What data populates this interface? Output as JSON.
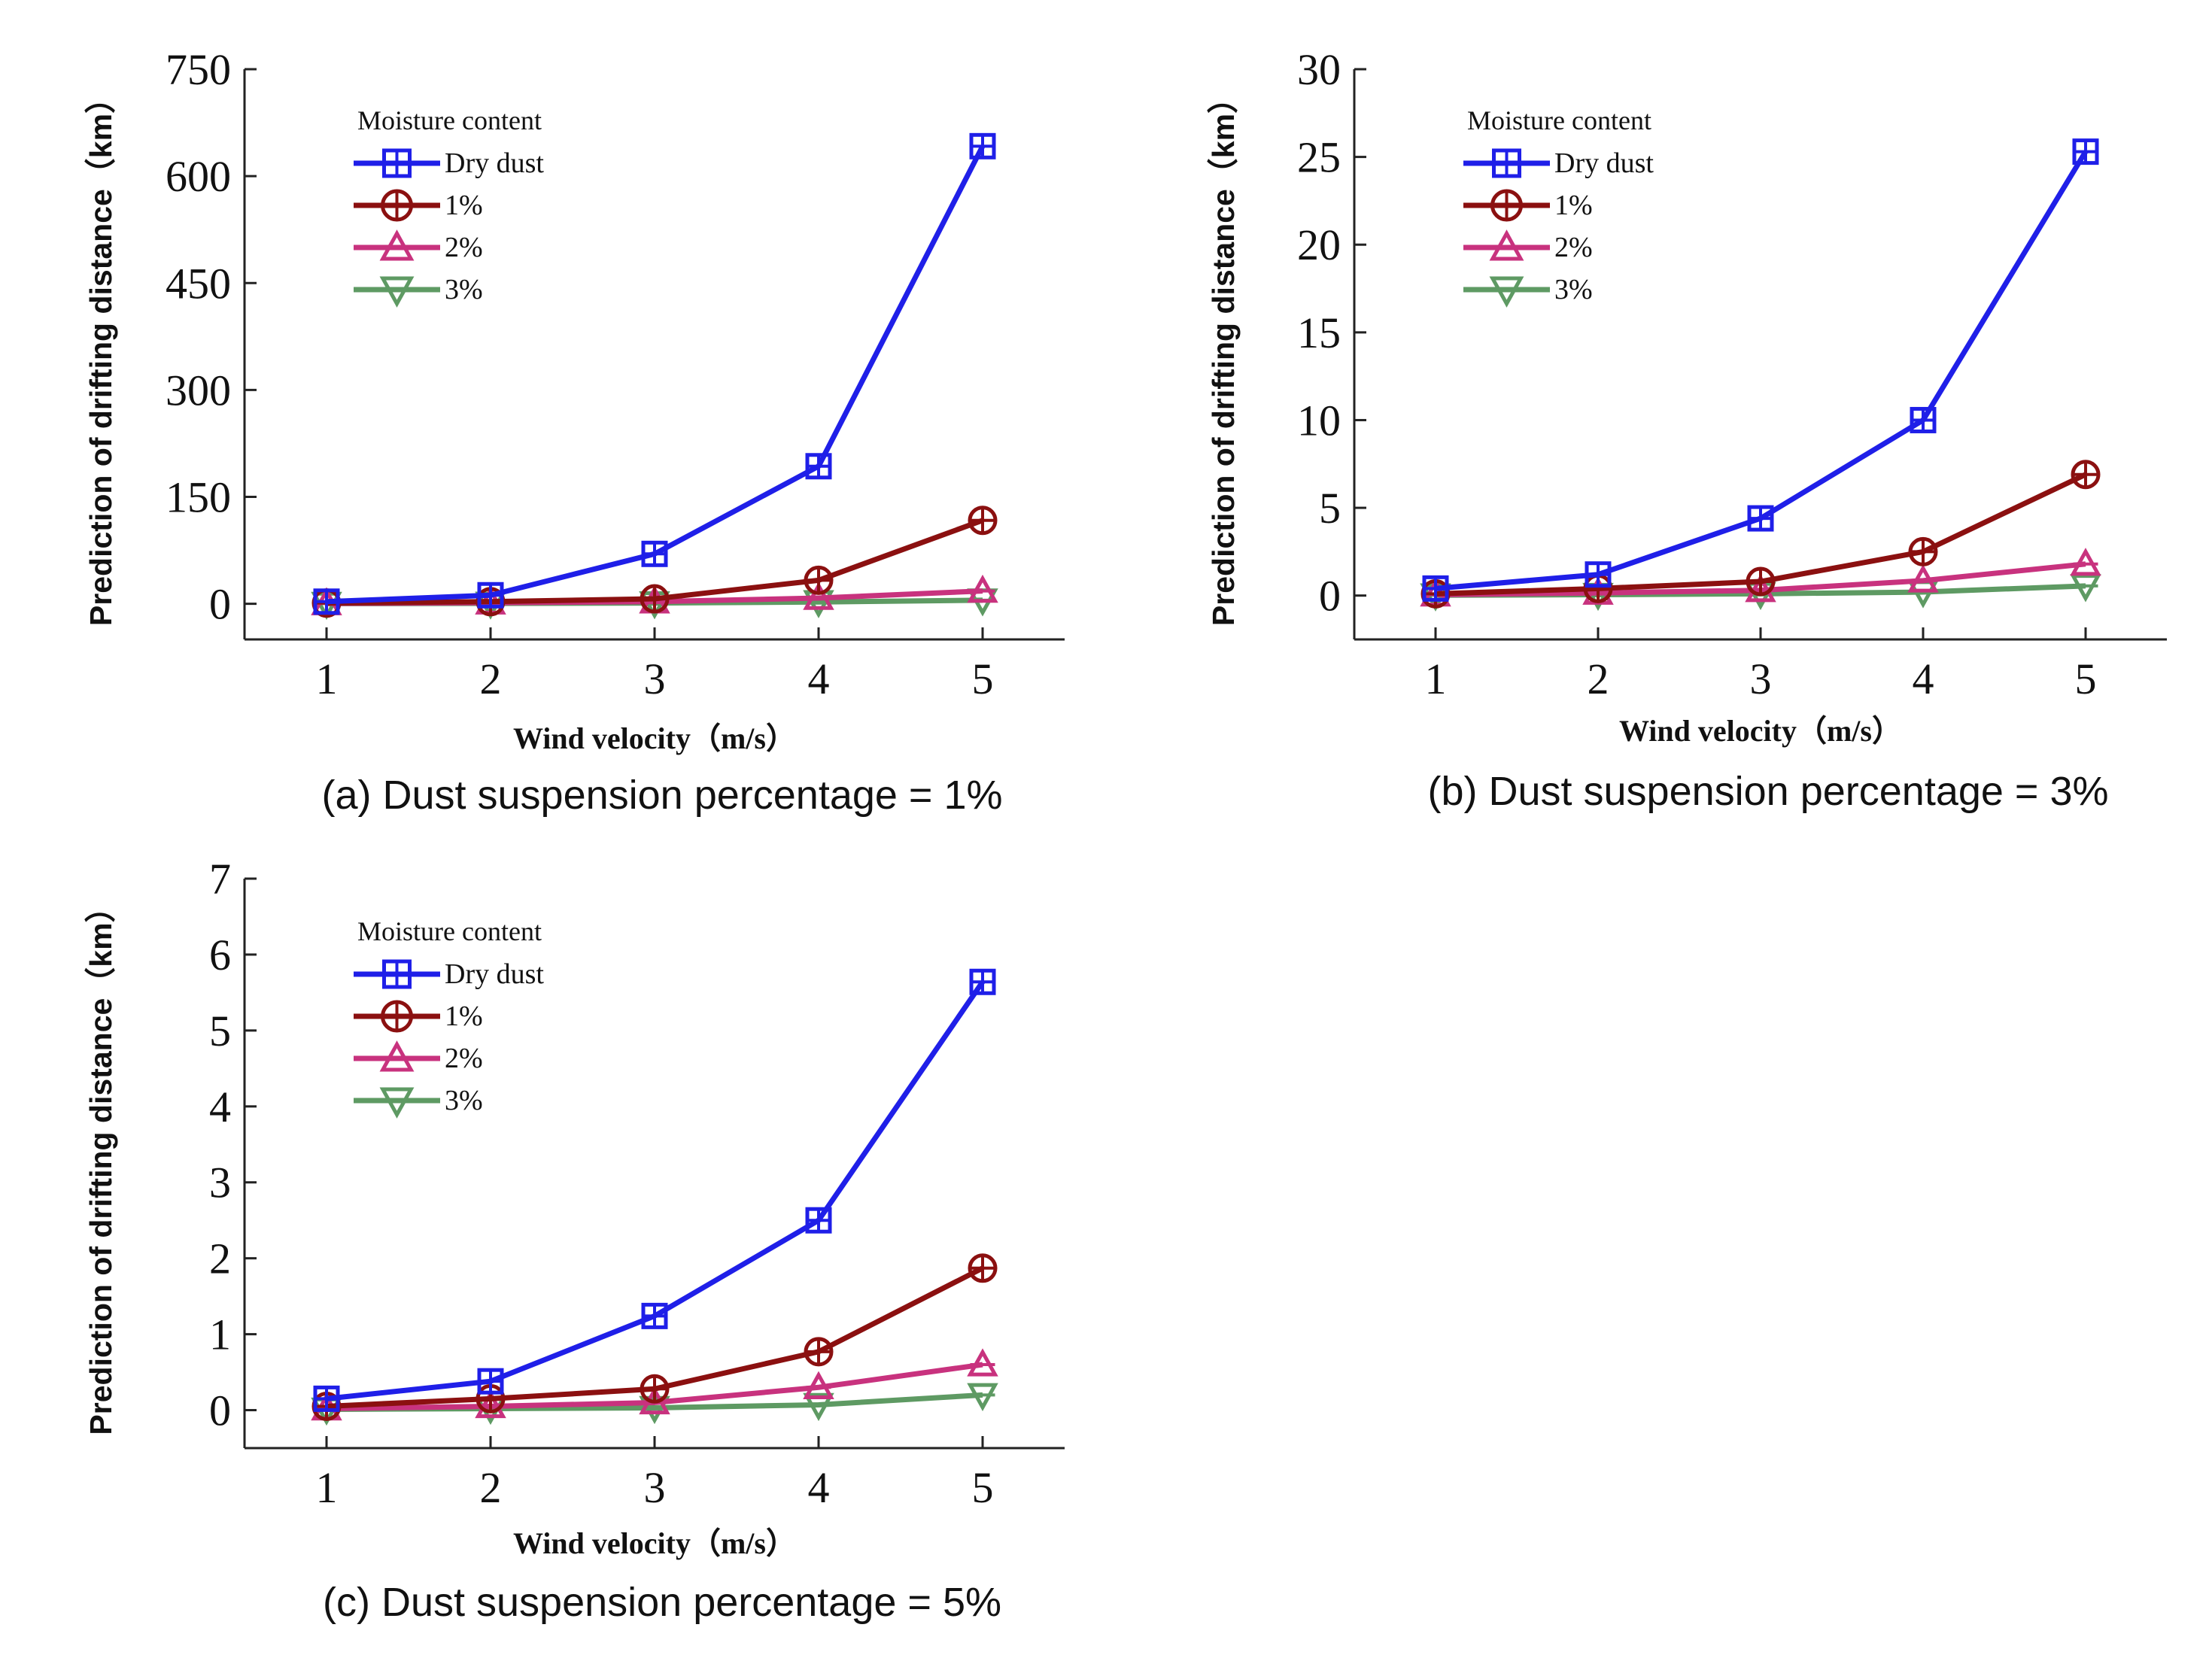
{
  "chart_data": [
    {
      "type": "line",
      "panel": "a",
      "caption": "(a) Dust suspension percentage = 1%",
      "xlabel": "Wind velocity（m/s）",
      "ylabel": "Prediction of drifting distance（km）",
      "x": [
        1,
        2,
        3,
        4,
        5
      ],
      "xticks": [
        "1",
        "2",
        "3",
        "4",
        "5"
      ],
      "xlim": [
        0.5,
        5.5
      ],
      "yticks": [
        "0",
        "150",
        "300",
        "450",
        "600",
        "750"
      ],
      "ylim": [
        -50,
        750
      ],
      "legend_title": "Moisture content",
      "legend_position": "top-left",
      "series": [
        {
          "name": "Dry dust",
          "marker": "square-cross",
          "color": "#1f1fe8",
          "values": [
            3,
            12,
            70,
            193,
            642
          ]
        },
        {
          "name": "1%",
          "marker": "circle-cross",
          "color": "#8b1010",
          "values": [
            1,
            3,
            7,
            33,
            117
          ]
        },
        {
          "name": "2%",
          "marker": "triangle-up",
          "color": "#c8327e",
          "values": [
            0.5,
            1.5,
            3,
            8,
            18
          ]
        },
        {
          "name": "3%",
          "marker": "triangle-down",
          "color": "#5e9a63",
          "values": [
            0.2,
            0.5,
            1,
            2.5,
            5
          ]
        }
      ]
    },
    {
      "type": "line",
      "panel": "b",
      "caption": "(b) Dust suspension percentage = 3%",
      "xlabel": "Wind velocity（m/s）",
      "ylabel": "Prediction of drifting distance（km）",
      "x": [
        1,
        2,
        3,
        4,
        5
      ],
      "xticks": [
        "1",
        "2",
        "3",
        "4",
        "5"
      ],
      "xlim": [
        0.5,
        5.5
      ],
      "yticks": [
        "0",
        "5",
        "10",
        "15",
        "20",
        "25",
        "30"
      ],
      "ylim": [
        -2.5,
        30
      ],
      "legend_title": "Moisture content",
      "legend_position": "top-left",
      "series": [
        {
          "name": "Dry dust",
          "marker": "square-cross",
          "color": "#1f1fe8",
          "values": [
            0.4,
            1.2,
            4.4,
            10.0,
            25.3
          ]
        },
        {
          "name": "1%",
          "marker": "circle-cross",
          "color": "#8b1010",
          "values": [
            0.1,
            0.4,
            0.8,
            2.5,
            6.9
          ]
        },
        {
          "name": "2%",
          "marker": "triangle-up",
          "color": "#c8327e",
          "values": [
            0.05,
            0.15,
            0.3,
            0.85,
            1.8
          ]
        },
        {
          "name": "3%",
          "marker": "triangle-down",
          "color": "#5e9a63",
          "values": [
            0.02,
            0.05,
            0.1,
            0.2,
            0.55
          ]
        }
      ]
    },
    {
      "type": "line",
      "panel": "c",
      "caption": "(c) Dust suspension percentage = 5%",
      "xlabel": "Wind velocity（m/s）",
      "ylabel": "Prediction of drifting distance（km）",
      "x": [
        1,
        2,
        3,
        4,
        5
      ],
      "xticks": [
        "1",
        "2",
        "3",
        "4",
        "5"
      ],
      "xlim": [
        0.5,
        5.5
      ],
      "yticks": [
        "0",
        "1",
        "2",
        "3",
        "4",
        "5",
        "6",
        "7"
      ],
      "ylim": [
        -0.5,
        7
      ],
      "legend_title": "Moisture content",
      "legend_position": "top-left",
      "series": [
        {
          "name": "Dry dust",
          "marker": "square-cross",
          "color": "#1f1fe8",
          "values": [
            0.15,
            0.38,
            1.24,
            2.5,
            5.64
          ]
        },
        {
          "name": "1%",
          "marker": "circle-cross",
          "color": "#8b1010",
          "values": [
            0.05,
            0.15,
            0.28,
            0.77,
            1.87
          ]
        },
        {
          "name": "2%",
          "marker": "triangle-up",
          "color": "#c8327e",
          "values": [
            0.02,
            0.05,
            0.1,
            0.3,
            0.6
          ]
        },
        {
          "name": "3%",
          "marker": "triangle-down",
          "color": "#5e9a63",
          "values": [
            0.01,
            0.02,
            0.03,
            0.07,
            0.2
          ]
        }
      ]
    }
  ]
}
